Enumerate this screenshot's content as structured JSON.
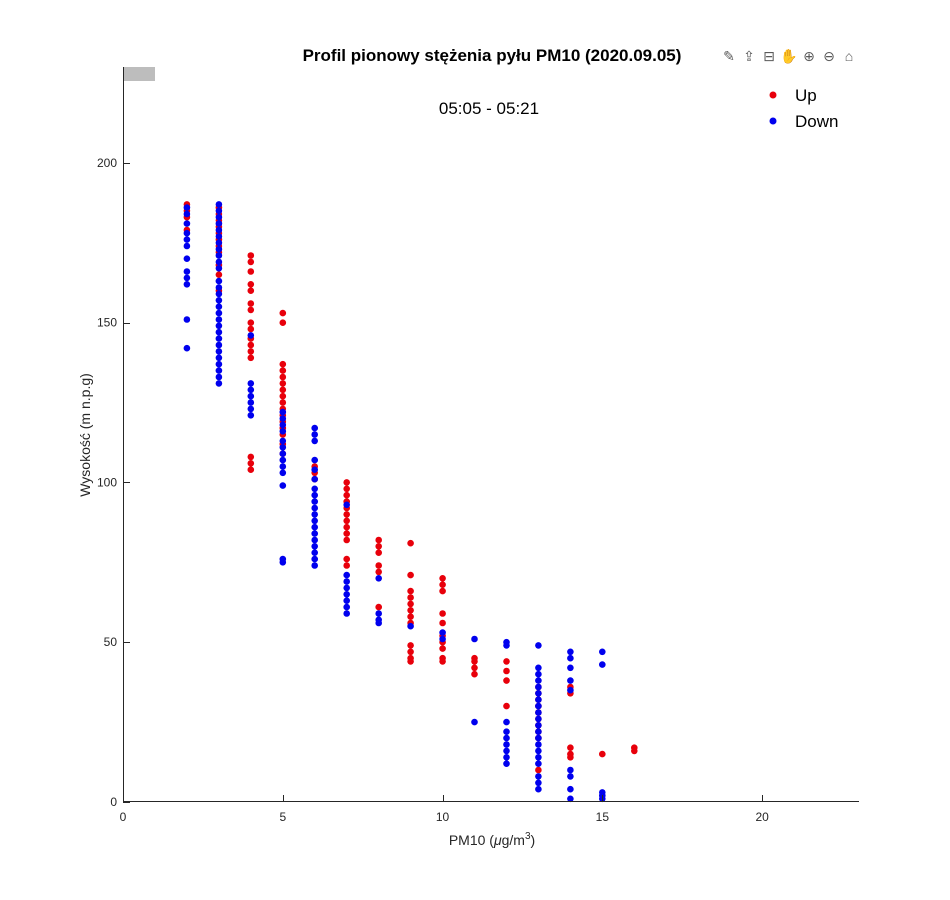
{
  "figure": {
    "toolbar": [
      {
        "name": "brush-icon",
        "glyph": "✎"
      },
      {
        "name": "export-icon",
        "glyph": "⇪"
      },
      {
        "name": "datatip-icon",
        "glyph": "⊟"
      },
      {
        "name": "pan-icon",
        "glyph": "✋"
      },
      {
        "name": "zoom-in-icon",
        "glyph": "⊕"
      },
      {
        "name": "zoom-out-icon",
        "glyph": "⊖"
      },
      {
        "name": "home-icon",
        "glyph": "⌂"
      }
    ]
  },
  "chart_data": {
    "type": "scatter",
    "title": "Profil pionowy stężenia pyłu PM10 (2020.09.05)",
    "subtitle": "05:05 - 05:21",
    "xlabel_main": "PM10 (",
    "xlabel_mu": "μ",
    "xlabel_unit": "g/m",
    "xlabel_sup": "3",
    "xlabel_end": ")",
    "ylabel": "Wysokość (m n.p.g)",
    "xlim": [
      0,
      23
    ],
    "ylim": [
      0,
      230
    ],
    "xticks": [
      0,
      5,
      10,
      15,
      20
    ],
    "yticks": [
      0,
      50,
      100,
      150,
      200
    ],
    "legend": {
      "position": "top-right",
      "entries": [
        {
          "label": "Up",
          "color": "#e8000b"
        },
        {
          "label": "Down",
          "color": "#0000ee"
        }
      ]
    },
    "series": [
      {
        "name": "Up",
        "color": "#e8000b",
        "points": [
          [
            2,
            187
          ],
          [
            2,
            185
          ],
          [
            2,
            183
          ],
          [
            2,
            179
          ],
          [
            3,
            186
          ],
          [
            3,
            184
          ],
          [
            3,
            182
          ],
          [
            3,
            180
          ],
          [
            3,
            178
          ],
          [
            3,
            176
          ],
          [
            3,
            174
          ],
          [
            3,
            172
          ],
          [
            3,
            168
          ],
          [
            3,
            165
          ],
          [
            3,
            160
          ],
          [
            4,
            171
          ],
          [
            4,
            169
          ],
          [
            4,
            166
          ],
          [
            4,
            162
          ],
          [
            4,
            160
          ],
          [
            4,
            156
          ],
          [
            4,
            154
          ],
          [
            4,
            150
          ],
          [
            4,
            148
          ],
          [
            4,
            145
          ],
          [
            4,
            143
          ],
          [
            4,
            141
          ],
          [
            4,
            139
          ],
          [
            4,
            108
          ],
          [
            4,
            106
          ],
          [
            4,
            104
          ],
          [
            5,
            153
          ],
          [
            5,
            150
          ],
          [
            5,
            137
          ],
          [
            5,
            135
          ],
          [
            5,
            133
          ],
          [
            5,
            131
          ],
          [
            5,
            129
          ],
          [
            5,
            127
          ],
          [
            5,
            125
          ],
          [
            5,
            123
          ],
          [
            5,
            121
          ],
          [
            5,
            119
          ],
          [
            5,
            117
          ],
          [
            5,
            115
          ],
          [
            5,
            112
          ],
          [
            5,
            109
          ],
          [
            6,
            105
          ],
          [
            6,
            103
          ],
          [
            6,
            101
          ],
          [
            7,
            100
          ],
          [
            7,
            98
          ],
          [
            7,
            96
          ],
          [
            7,
            94
          ],
          [
            7,
            92
          ],
          [
            7,
            90
          ],
          [
            7,
            88
          ],
          [
            7,
            86
          ],
          [
            7,
            84
          ],
          [
            7,
            82
          ],
          [
            7,
            76
          ],
          [
            7,
            74
          ],
          [
            8,
            82
          ],
          [
            8,
            80
          ],
          [
            8,
            78
          ],
          [
            8,
            74
          ],
          [
            8,
            72
          ],
          [
            8,
            61
          ],
          [
            9,
            81
          ],
          [
            9,
            71
          ],
          [
            9,
            66
          ],
          [
            9,
            64
          ],
          [
            9,
            62
          ],
          [
            9,
            60
          ],
          [
            9,
            58
          ],
          [
            9,
            56
          ],
          [
            9,
            49
          ],
          [
            9,
            47
          ],
          [
            9,
            45
          ],
          [
            9,
            44
          ],
          [
            10,
            70
          ],
          [
            10,
            68
          ],
          [
            10,
            66
          ],
          [
            10,
            59
          ],
          [
            10,
            56
          ],
          [
            10,
            52
          ],
          [
            10,
            50
          ],
          [
            10,
            48
          ],
          [
            10,
            45
          ],
          [
            10,
            44
          ],
          [
            11,
            45
          ],
          [
            11,
            44
          ],
          [
            11,
            42
          ],
          [
            11,
            40
          ],
          [
            12,
            44
          ],
          [
            12,
            41
          ],
          [
            12,
            38
          ],
          [
            12,
            30
          ],
          [
            13,
            36
          ],
          [
            13,
            34
          ],
          [
            13,
            32
          ],
          [
            13,
            30
          ],
          [
            13,
            28
          ],
          [
            13,
            26
          ],
          [
            13,
            24
          ],
          [
            13,
            22
          ],
          [
            13,
            20
          ],
          [
            13,
            10
          ],
          [
            14,
            36
          ],
          [
            14,
            34
          ],
          [
            14,
            17
          ],
          [
            14,
            15
          ],
          [
            14,
            14
          ],
          [
            15,
            15
          ],
          [
            16,
            17
          ],
          [
            16,
            16
          ]
        ]
      },
      {
        "name": "Down",
        "color": "#0000ee",
        "points": [
          [
            2,
            186
          ],
          [
            2,
            184
          ],
          [
            2,
            181
          ],
          [
            2,
            178
          ],
          [
            2,
            176
          ],
          [
            2,
            174
          ],
          [
            2,
            170
          ],
          [
            2,
            166
          ],
          [
            2,
            164
          ],
          [
            2,
            162
          ],
          [
            2,
            151
          ],
          [
            2,
            142
          ],
          [
            3,
            187
          ],
          [
            3,
            185
          ],
          [
            3,
            183
          ],
          [
            3,
            181
          ],
          [
            3,
            179
          ],
          [
            3,
            177
          ],
          [
            3,
            175
          ],
          [
            3,
            173
          ],
          [
            3,
            171
          ],
          [
            3,
            169
          ],
          [
            3,
            167
          ],
          [
            3,
            163
          ],
          [
            3,
            161
          ],
          [
            3,
            159
          ],
          [
            3,
            157
          ],
          [
            3,
            155
          ],
          [
            3,
            153
          ],
          [
            3,
            151
          ],
          [
            3,
            149
          ],
          [
            3,
            147
          ],
          [
            3,
            145
          ],
          [
            3,
            143
          ],
          [
            3,
            141
          ],
          [
            3,
            139
          ],
          [
            3,
            137
          ],
          [
            3,
            135
          ],
          [
            3,
            133
          ],
          [
            3,
            131
          ],
          [
            4,
            146
          ],
          [
            4,
            131
          ],
          [
            4,
            129
          ],
          [
            4,
            127
          ],
          [
            4,
            125
          ],
          [
            4,
            123
          ],
          [
            4,
            121
          ],
          [
            5,
            122
          ],
          [
            5,
            120
          ],
          [
            5,
            118
          ],
          [
            5,
            116
          ],
          [
            5,
            113
          ],
          [
            5,
            111
          ],
          [
            5,
            109
          ],
          [
            5,
            107
          ],
          [
            5,
            105
          ],
          [
            5,
            103
          ],
          [
            5,
            99
          ],
          [
            5,
            76
          ],
          [
            5,
            75
          ],
          [
            6,
            117
          ],
          [
            6,
            115
          ],
          [
            6,
            113
          ],
          [
            6,
            107
          ],
          [
            6,
            104
          ],
          [
            6,
            101
          ],
          [
            6,
            98
          ],
          [
            6,
            96
          ],
          [
            6,
            94
          ],
          [
            6,
            92
          ],
          [
            6,
            90
          ],
          [
            6,
            88
          ],
          [
            6,
            86
          ],
          [
            6,
            84
          ],
          [
            6,
            82
          ],
          [
            6,
            80
          ],
          [
            6,
            78
          ],
          [
            6,
            76
          ],
          [
            6,
            74
          ],
          [
            7,
            93
          ],
          [
            7,
            71
          ],
          [
            7,
            69
          ],
          [
            7,
            67
          ],
          [
            7,
            65
          ],
          [
            7,
            63
          ],
          [
            7,
            61
          ],
          [
            7,
            59
          ],
          [
            8,
            70
          ],
          [
            8,
            59
          ],
          [
            8,
            57
          ],
          [
            8,
            56
          ],
          [
            9,
            55
          ],
          [
            10,
            53
          ],
          [
            10,
            51
          ],
          [
            11,
            51
          ],
          [
            11,
            25
          ],
          [
            12,
            50
          ],
          [
            12,
            49
          ],
          [
            12,
            25
          ],
          [
            12,
            22
          ],
          [
            12,
            20
          ],
          [
            12,
            18
          ],
          [
            12,
            16
          ],
          [
            12,
            14
          ],
          [
            12,
            12
          ],
          [
            13,
            49
          ],
          [
            13,
            42
          ],
          [
            13,
            40
          ],
          [
            13,
            38
          ],
          [
            13,
            36
          ],
          [
            13,
            34
          ],
          [
            13,
            32
          ],
          [
            13,
            30
          ],
          [
            13,
            28
          ],
          [
            13,
            26
          ],
          [
            13,
            24
          ],
          [
            13,
            22
          ],
          [
            13,
            20
          ],
          [
            13,
            18
          ],
          [
            13,
            16
          ],
          [
            13,
            14
          ],
          [
            13,
            12
          ],
          [
            13,
            8
          ],
          [
            13,
            6
          ],
          [
            13,
            4
          ],
          [
            14,
            47
          ],
          [
            14,
            45
          ],
          [
            14,
            42
          ],
          [
            14,
            38
          ],
          [
            14,
            35
          ],
          [
            14,
            10
          ],
          [
            14,
            8
          ],
          [
            14,
            4
          ],
          [
            14,
            1
          ],
          [
            15,
            47
          ],
          [
            15,
            43
          ],
          [
            15,
            3
          ],
          [
            15,
            2
          ],
          [
            15,
            1
          ]
        ]
      }
    ]
  }
}
